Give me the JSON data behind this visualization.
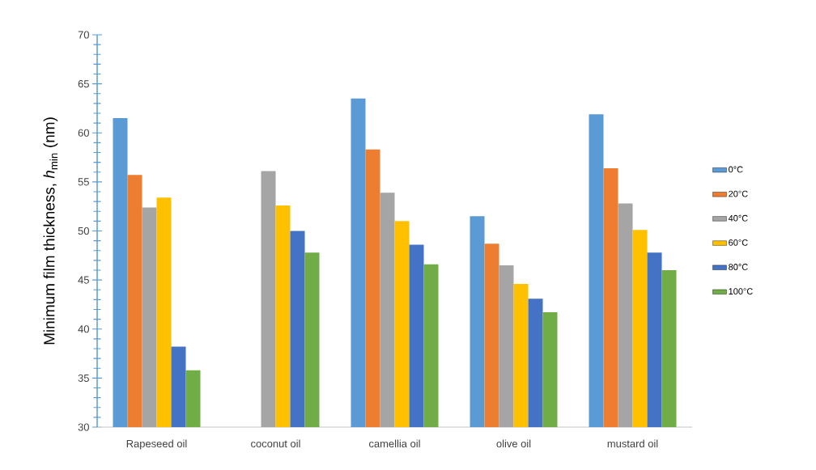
{
  "chart_data": {
    "type": "bar",
    "ylabel": "Minimum film thickness, *h*$_{min}$ (nm)",
    "categories": [
      "Rapeseed oil",
      "coconut oil",
      "camellia oil",
      "olive oil",
      "mustard oil"
    ],
    "series": [
      {
        "name": "0°C",
        "color": "#5b9bd5",
        "values": [
          61.5,
          null,
          63.5,
          51.5,
          61.9
        ]
      },
      {
        "name": "20°C",
        "color": "#ed7d31",
        "values": [
          55.7,
          null,
          58.3,
          48.7,
          56.4
        ]
      },
      {
        "name": "40°C",
        "color": "#a5a5a5",
        "values": [
          52.4,
          56.1,
          53.9,
          46.5,
          52.8
        ]
      },
      {
        "name": "60°C",
        "color": "#ffc000",
        "values": [
          53.4,
          52.6,
          51.0,
          44.6,
          50.1
        ]
      },
      {
        "name": "80°C",
        "color": "#4472c4",
        "values": [
          38.2,
          50.0,
          48.6,
          43.1,
          47.8
        ]
      },
      {
        "name": "100°C",
        "color": "#70ad47",
        "values": [
          35.8,
          47.8,
          46.6,
          41.7,
          46.0
        ]
      }
    ],
    "ylim": [
      30,
      70
    ],
    "yticks": [
      30,
      {
        "value": 31,
        "label": null
      },
      {
        "value": 32,
        "label": null
      },
      {
        "value": 33,
        "label": null
      },
      {
        "value": 34,
        "label": null
      },
      35,
      {
        "value": 36,
        "label": null
      },
      {
        "value": 37,
        "label": null
      },
      {
        "value": 38,
        "label": null
      },
      {
        "value": 39,
        "label": null
      },
      40,
      {
        "value": 41,
        "label": null
      },
      {
        "value": 42,
        "label": null
      },
      {
        "value": 43,
        "label": null
      },
      {
        "value": 44,
        "label": null
      },
      45,
      {
        "value": 46,
        "label": null
      },
      {
        "value": 47,
        "label": null
      },
      {
        "value": 48,
        "label": null
      },
      {
        "value": 49,
        "label": null
      },
      50,
      {
        "value": 51,
        "label": null
      },
      {
        "value": 52,
        "label": null
      },
      {
        "value": 53,
        "label": null
      },
      {
        "value": 54,
        "label": null
      },
      55,
      {
        "value": 56,
        "label": null
      },
      {
        "value": 57,
        "label": null
      },
      {
        "value": 58,
        "label": null
      },
      {
        "value": 59,
        "label": null
      },
      60,
      {
        "value": 61,
        "label": null
      },
      {
        "value": 62,
        "label": null
      },
      {
        "value": 63,
        "label": null
      },
      {
        "value": 64,
        "label": null
      },
      65,
      {
        "value": 66,
        "label": null
      },
      {
        "value": 67,
        "label": null
      },
      {
        "value": 68,
        "label": null
      },
      {
        "value": 69,
        "label": null
      },
      70
    ],
    "grid": false,
    "legend": "right"
  }
}
